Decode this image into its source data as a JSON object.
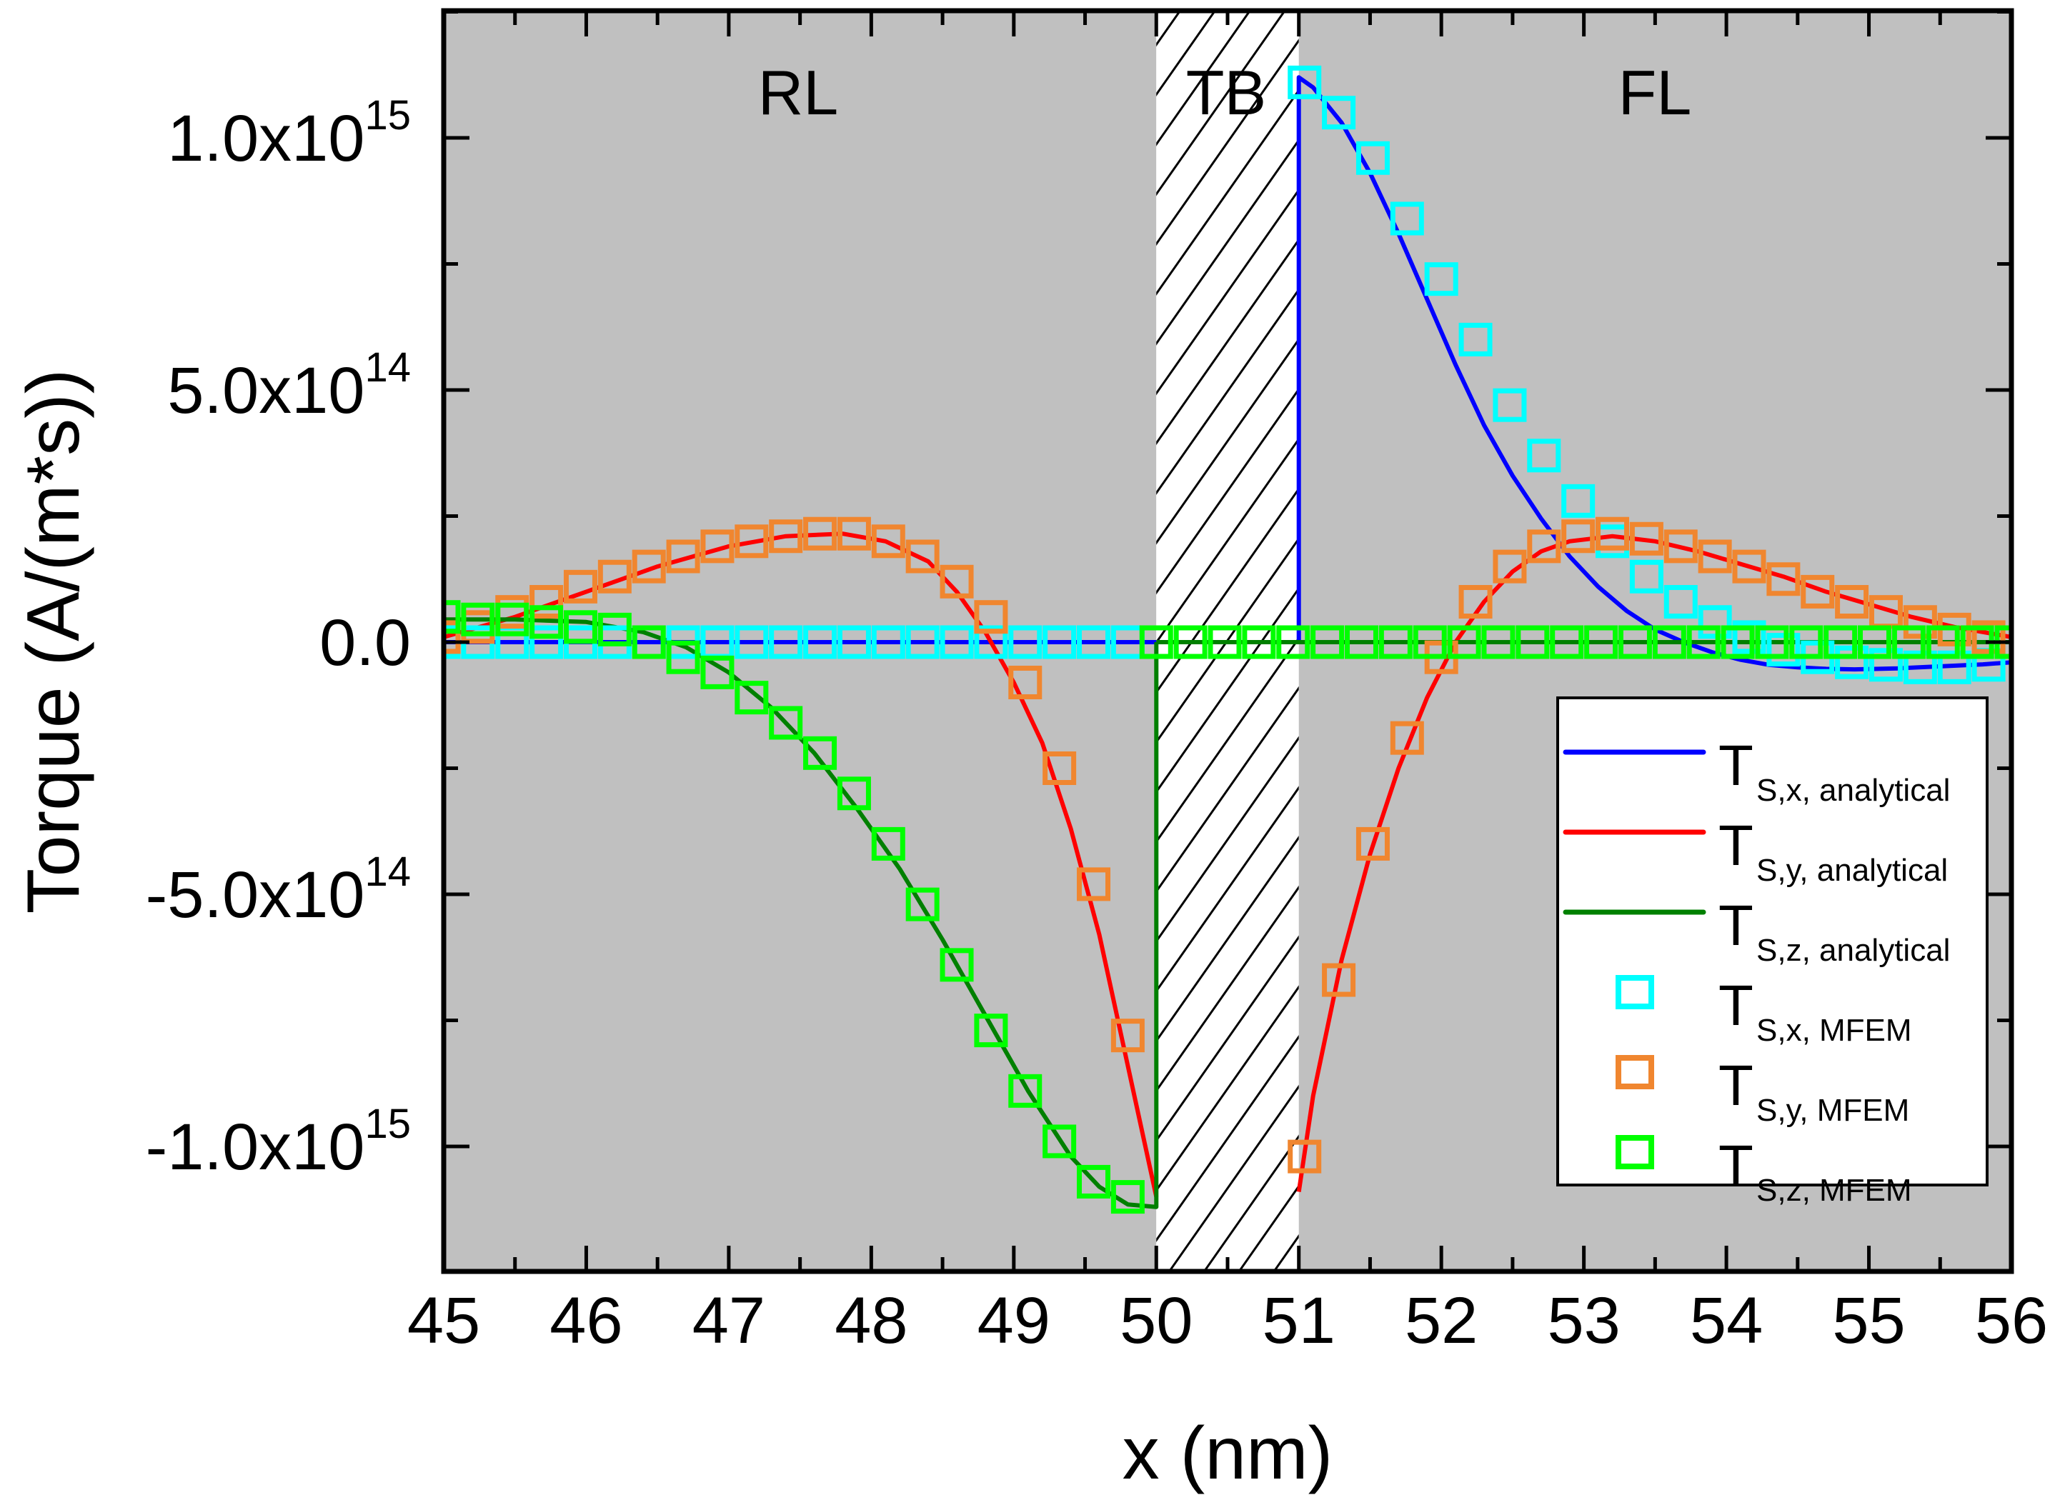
{
  "chart_data": {
    "type": "line",
    "title": "",
    "xlabel": "x (nm)",
    "ylabel": "Torque (A/(m*s))",
    "xlim": [
      45,
      56
    ],
    "ylim": [
      -1250000000000000.0,
      1250000000000000.0
    ],
    "grid": false,
    "x_ticks": [
      {
        "value": 45,
        "label": "45"
      },
      {
        "value": 46,
        "label": "46"
      },
      {
        "value": 47,
        "label": "47"
      },
      {
        "value": 48,
        "label": "48"
      },
      {
        "value": 49,
        "label": "49"
      },
      {
        "value": 50,
        "label": "50"
      },
      {
        "value": 51,
        "label": "51"
      },
      {
        "value": 52,
        "label": "52"
      },
      {
        "value": 53,
        "label": "53"
      },
      {
        "value": 54,
        "label": "54"
      },
      {
        "value": 55,
        "label": "55"
      },
      {
        "value": 56,
        "label": "56"
      }
    ],
    "y_ticks": [
      {
        "value": 1000000000000000.0,
        "mantissa": "1.0x10",
        "exponent": "15"
      },
      {
        "value": 500000000000000.0,
        "mantissa": "5.0x10",
        "exponent": "14"
      },
      {
        "value": 0,
        "mantissa": "0.0",
        "exponent": ""
      },
      {
        "value": -500000000000000.0,
        "mantissa": "-5.0x10",
        "exponent": "14"
      },
      {
        "value": -1000000000000000.0,
        "mantissa": "-1.0x10",
        "exponent": "15"
      }
    ],
    "regions": [
      {
        "label": "RL",
        "x_range": [
          45,
          50
        ],
        "fill": "#c0c0c0",
        "hatched": false
      },
      {
        "label": "TB",
        "x_range": [
          50,
          51
        ],
        "fill": "#ffffff",
        "hatched": true
      },
      {
        "label": "FL",
        "x_range": [
          51,
          56
        ],
        "fill": "#c0c0c0",
        "hatched": false
      }
    ],
    "legend_position": "bottom-right",
    "series": [
      {
        "name": "T_S,x, analytical",
        "main": "T",
        "sub": "S,x, analytical",
        "kind": "line",
        "color": "#0000ff",
        "segments": [
          {
            "x": [
              45,
              50
            ],
            "y": [
              0,
              0
            ]
          },
          {
            "x": [
              51,
              51,
              51.1,
              51.3,
              51.5,
              51.7,
              51.9,
              52.1,
              52.3,
              52.5,
              52.7,
              52.9,
              53.1,
              53.3,
              53.5,
              53.7,
              53.9,
              54.1,
              54.3,
              54.5,
              54.7,
              54.9,
              55.2,
              55.5,
              55.8,
              56
            ],
            "y": [
              0,
              1120000000000000.0,
              1100000000000000.0,
              1030000000000000.0,
              930000000000000.0,
              810000000000000.0,
              680000000000000.0,
              550000000000000.0,
              430000000000000.0,
              330000000000000.0,
              245000000000000.0,
              170000000000000.0,
              110000000000000.0,
              62000000000000.0,
              25000000000000.0,
              0.0,
              -20000000000000.0,
              -35000000000000.0,
              -45000000000000.0,
              -50000000000000.0,
              -53000000000000.0,
              -54000000000000.0,
              -52000000000000.0,
              -48000000000000.0,
              -44000000000000.0,
              -40000000000000.0
            ]
          }
        ]
      },
      {
        "name": "T_S,y, analytical",
        "main": "T",
        "sub": "S,y, analytical",
        "kind": "line",
        "color": "#ff0000",
        "segments": [
          {
            "x": [
              45,
              45.5,
              46,
              46.5,
              47,
              47.4,
              47.8,
              48.1,
              48.4,
              48.6,
              48.8,
              49.0,
              49.2,
              49.4,
              49.6,
              49.8,
              50
            ],
            "y": [
              10000000000000.0,
              50000000000000.0,
              100000000000000.0,
              150000000000000.0,
              190000000000000.0,
              210000000000000.0,
              215000000000000.0,
              200000000000000.0,
              160000000000000.0,
              100000000000000.0,
              20000000000000.0,
              -80000000000000.0,
              -200000000000000.0,
              -370000000000000.0,
              -580000000000000.0,
              -840000000000000.0,
              -1100000000000000.0
            ]
          },
          {
            "x": [
              51,
              51.1,
              51.3,
              51.5,
              51.7,
              51.9,
              52.1,
              52.3,
              52.5,
              52.7,
              52.9,
              53.2,
              53.5,
              53.8,
              54.1,
              54.4,
              54.7,
              55.0,
              55.3,
              55.6,
              56
            ],
            "y": [
              -1090000000000000.0,
              -900000000000000.0,
              -630000000000000.0,
              -420000000000000.0,
              -250000000000000.0,
              -110000000000000.0,
              0.0,
              80000000000000.0,
              140000000000000.0,
              180000000000000.0,
              200000000000000.0,
              210000000000000.0,
              200000000000000.0,
              180000000000000.0,
              155000000000000.0,
              130000000000000.0,
              100000000000000.0,
              75000000000000.0,
              50000000000000.0,
              30000000000000.0,
              10000000000000.0
            ]
          }
        ]
      },
      {
        "name": "T_S,z, analytical",
        "main": "T",
        "sub": "S,z, analytical",
        "kind": "line",
        "color": "#008000",
        "segments": [
          {
            "x": [
              45,
              45.5,
              46,
              46.4,
              46.7,
              47.0,
              47.3,
              47.6,
              47.9,
              48.2,
              48.5,
              48.8,
              49.1,
              49.4,
              49.6,
              49.8,
              50,
              50
            ],
            "y": [
              45000000000000.0,
              45000000000000.0,
              40000000000000.0,
              20000000000000.0,
              -10000000000000.0,
              -60000000000000.0,
              -130000000000000.0,
              -220000000000000.0,
              -330000000000000.0,
              -450000000000000.0,
              -590000000000000.0,
              -740000000000000.0,
              -890000000000000.0,
              -1020000000000000.0,
              -1080000000000000.0,
              -1115000000000000.0,
              -1120000000000000.0,
              0
            ]
          },
          {
            "x": [
              50,
              56
            ],
            "y": [
              0,
              0
            ]
          }
        ]
      },
      {
        "name": "T_S,x, MFEM",
        "main": "T",
        "sub": "S,x, MFEM",
        "kind": "marker",
        "color": "#00ffff",
        "x": [
          45.0,
          45.24,
          45.48,
          45.72,
          45.96,
          46.2,
          46.44,
          46.68,
          46.92,
          47.16,
          47.4,
          47.64,
          47.88,
          48.12,
          48.36,
          48.6,
          48.84,
          49.08,
          49.32,
          49.56,
          49.8,
          51.04,
          51.28,
          51.52,
          51.76,
          52.0,
          52.24,
          52.48,
          52.72,
          52.96,
          53.2,
          53.44,
          53.68,
          53.92,
          54.16,
          54.4,
          54.64,
          54.88,
          55.12,
          55.36,
          55.6,
          55.84
        ],
        "y": [
          0,
          0,
          0,
          0,
          0,
          0,
          0,
          0,
          0,
          0,
          0,
          0,
          0,
          0,
          0,
          0,
          0,
          0,
          0,
          0,
          0,
          1110000000000000.0,
          1050000000000000.0,
          960000000000000.0,
          840000000000000.0,
          720000000000000.0,
          600000000000000.0,
          470000000000000.0,
          370000000000000.0,
          280000000000000.0,
          200000000000000.0,
          130000000000000.0,
          80000000000000.0,
          40000000000000.0,
          10000000000000.0,
          -15000000000000.0,
          -30000000000000.0,
          -40000000000000.0,
          -45000000000000.0,
          -50000000000000.0,
          -50000000000000.0,
          -45000000000000.0
        ]
      },
      {
        "name": "T_S,y, MFEM",
        "main": "T",
        "sub": "S,y, MFEM",
        "kind": "marker",
        "color": "#f0862f",
        "x": [
          45.0,
          45.24,
          45.48,
          45.72,
          45.96,
          46.2,
          46.44,
          46.68,
          46.92,
          47.16,
          47.4,
          47.64,
          47.88,
          48.12,
          48.36,
          48.6,
          48.84,
          49.08,
          49.32,
          49.56,
          49.8,
          51.04,
          51.28,
          51.52,
          51.76,
          52.0,
          52.24,
          52.48,
          52.72,
          52.96,
          53.2,
          53.44,
          53.68,
          53.92,
          54.16,
          54.4,
          54.64,
          54.88,
          55.12,
          55.36,
          55.6,
          55.84
        ],
        "y": [
          10000000000000.0,
          30000000000000.0,
          60000000000000.0,
          80000000000000.0,
          110000000000000.0,
          130000000000000.0,
          150000000000000.0,
          170000000000000.0,
          190000000000000.0,
          200000000000000.0,
          210000000000000.0,
          215000000000000.0,
          215000000000000.0,
          200000000000000.0,
          170000000000000.0,
          120000000000000.0,
          50000000000000.0,
          -80000000000000.0,
          -250000000000000.0,
          -480000000000000.0,
          -780000000000000.0,
          -1020000000000000.0,
          -670000000000000.0,
          -400000000000000.0,
          -190000000000000.0,
          -30000000000000.0,
          80000000000000.0,
          150000000000000.0,
          190000000000000.0,
          210000000000000.0,
          215000000000000.0,
          205000000000000.0,
          190000000000000.0,
          170000000000000.0,
          150000000000000.0,
          125000000000000.0,
          100000000000000.0,
          80000000000000.0,
          60000000000000.0,
          40000000000000.0,
          25000000000000.0,
          10000000000000.0
        ]
      },
      {
        "name": "T_S,z, MFEM",
        "main": "T",
        "sub": "S,z, MFEM",
        "kind": "marker",
        "color": "#00ff00",
        "x": [
          45.0,
          45.24,
          45.48,
          45.72,
          45.96,
          46.2,
          46.44,
          46.68,
          46.92,
          47.16,
          47.4,
          47.64,
          47.88,
          48.12,
          48.36,
          48.6,
          48.84,
          49.08,
          49.32,
          49.56,
          49.8,
          50.0,
          50.24,
          50.48,
          50.72,
          50.96,
          51.2,
          51.44,
          51.68,
          51.92,
          52.16,
          52.4,
          52.64,
          52.88,
          53.12,
          53.36,
          53.6,
          53.84,
          54.08,
          54.32,
          54.56,
          54.8,
          55.04,
          55.28,
          55.52,
          55.76,
          56.0
        ],
        "y": [
          50000000000000.0,
          45000000000000.0,
          45000000000000.0,
          40000000000000.0,
          30000000000000.0,
          25000000000000.0,
          0.0,
          -30000000000000.0,
          -60000000000000.0,
          -110000000000000.0,
          -160000000000000.0,
          -220000000000000.0,
          -300000000000000.0,
          -400000000000000.0,
          -520000000000000.0,
          -640000000000000.0,
          -770000000000000.0,
          -890000000000000.0,
          -990000000000000.0,
          -1070000000000000.0,
          -1100000000000000.0,
          0,
          0,
          0,
          0,
          0,
          0,
          0,
          0,
          0,
          0,
          0,
          0,
          0,
          0,
          0,
          0,
          0,
          0,
          0,
          0,
          0,
          0,
          0,
          0,
          0,
          0
        ]
      }
    ]
  }
}
